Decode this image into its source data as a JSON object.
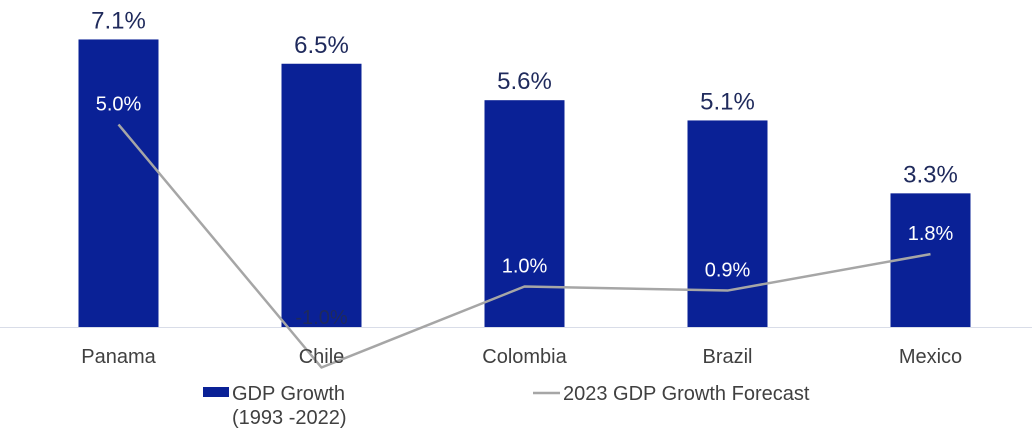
{
  "chart_data": {
    "type": "bar",
    "categories": [
      "Panama",
      "Chile",
      "Colombia",
      "Brazil",
      "Mexico"
    ],
    "series": [
      {
        "name": "GDP Growth (1993 -2022)",
        "legend_lines": [
          "GDP Growth",
          "(1993 -2022)"
        ],
        "type": "bar",
        "values": [
          7.1,
          6.5,
          5.6,
          5.1,
          3.3
        ],
        "labels": [
          "7.1%",
          "6.5%",
          "5.6%",
          "5.1%",
          "3.3%"
        ],
        "color": "#0a2196"
      },
      {
        "name": "2023 GDP Growth Forecast",
        "type": "line",
        "values": [
          5.0,
          -1.0,
          1.0,
          0.9,
          1.8
        ],
        "labels": [
          "5.0%",
          "-1.0%",
          "1.0%",
          "0.9%",
          "1.8%"
        ],
        "color": "#a6a6a6"
      }
    ],
    "ylim": [
      -1.2,
      8.2
    ],
    "grid": false,
    "legend_position": "bottom",
    "label_color": "#1f2a5c",
    "inbar_label_color": "#ffffff",
    "baseline_color": "#d9dde8"
  }
}
